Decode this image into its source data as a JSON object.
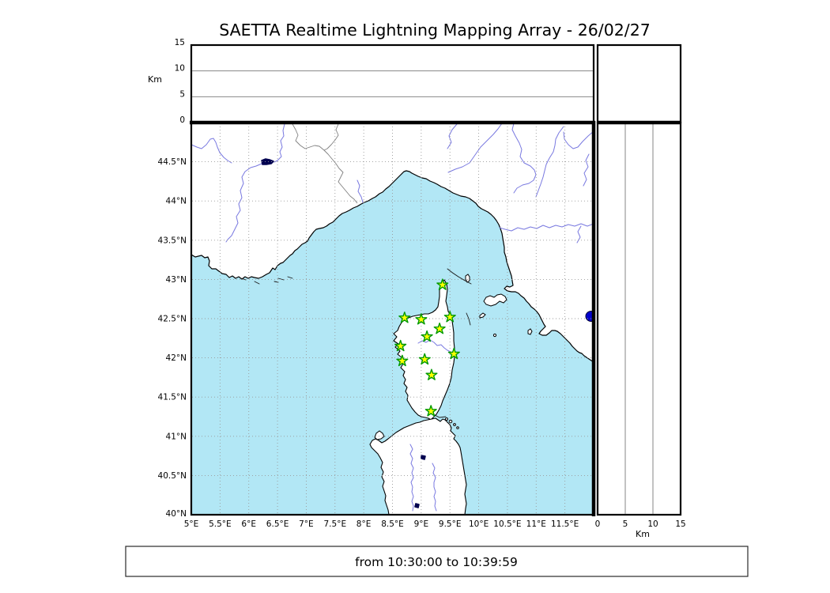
{
  "title": "SAETTA Realtime Lightning Mapping Array - 26/02/27",
  "status_bar": {
    "text": "from 10:30:00 to 10:39:59"
  },
  "top_altitude_panel": {
    "unit_label": "Km",
    "tick_labels": [
      "15",
      "10",
      "5",
      "0"
    ],
    "range_km": [
      0,
      15
    ]
  },
  "right_altitude_panel": {
    "unit_label": "Km",
    "tick_labels": [
      "0",
      "5",
      "10",
      "15"
    ],
    "range_km": [
      0,
      15
    ]
  },
  "map": {
    "lon_range": [
      5,
      12
    ],
    "lat_range": [
      40,
      45
    ],
    "lon_tick_labels": [
      "5°E",
      "5.5°E",
      "6°E",
      "6.5°E",
      "7°E",
      "7.5°E",
      "8°E",
      "8.5°E",
      "9°E",
      "9.5°E",
      "10°E",
      "10.5°E",
      "11°E",
      "11.5°E"
    ],
    "lat_tick_labels": [
      "44.5°N",
      "44°N",
      "43.5°N",
      "43°N",
      "42.5°N",
      "42°N",
      "41.5°N",
      "41°N",
      "40.5°N",
      "40°N"
    ],
    "stations": [
      {
        "lon": 9.37,
        "lat": 42.93
      },
      {
        "lon": 8.71,
        "lat": 42.51
      },
      {
        "lon": 9.0,
        "lat": 42.49
      },
      {
        "lon": 9.5,
        "lat": 42.52
      },
      {
        "lon": 9.32,
        "lat": 42.37
      },
      {
        "lon": 9.1,
        "lat": 42.27
      },
      {
        "lon": 8.64,
        "lat": 42.15
      },
      {
        "lon": 9.57,
        "lat": 42.05
      },
      {
        "lon": 9.06,
        "lat": 41.98
      },
      {
        "lon": 8.67,
        "lat": 41.96
      },
      {
        "lon": 9.18,
        "lat": 41.78
      },
      {
        "lon": 9.17,
        "lat": 41.32
      }
    ],
    "colors": {
      "sea": "#b2e7f5",
      "land": "#ffffff",
      "river": "#7979e0",
      "country_border": "#808080",
      "lake": "#000050",
      "lake_dot": "#0000cc",
      "grid": "#999999",
      "station_fill": "#ffff00",
      "station_stroke": "#009900"
    }
  }
}
